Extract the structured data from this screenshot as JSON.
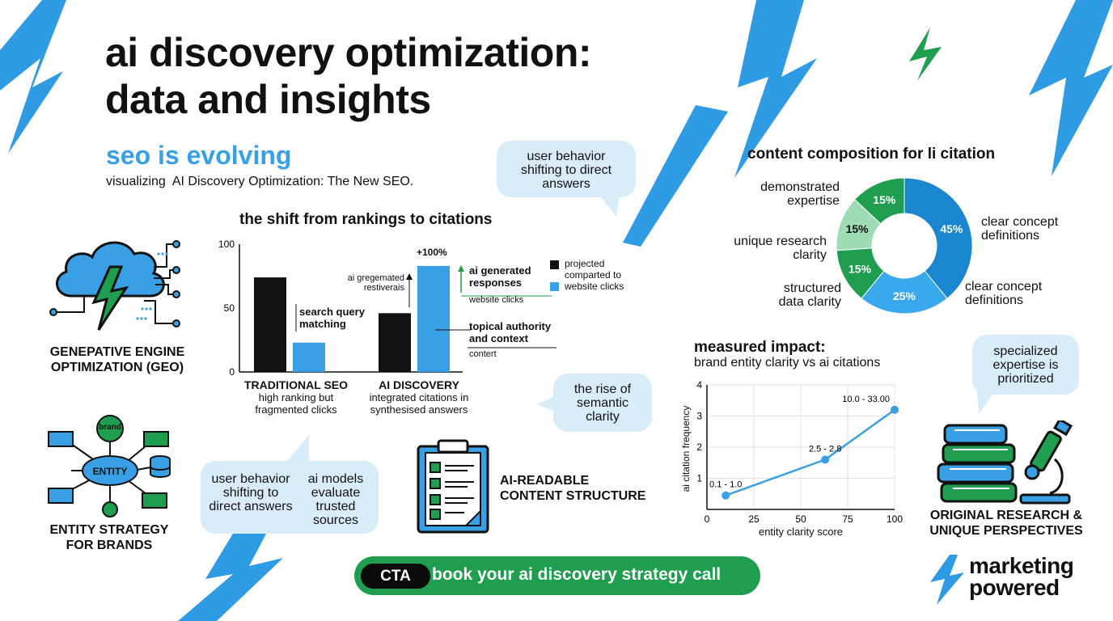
{
  "header": {
    "title_line1": "ai discovery optimization:",
    "title_line2": "data and insights",
    "subtitle": "seo is evolving",
    "tagline": "visualizing  AI Discovery Optimization: The New SEO."
  },
  "colors": {
    "blue": "#3aa0e6",
    "green": "#1e9e4e",
    "black": "#111111",
    "bubble": "#d9ecf9"
  },
  "bubbles": {
    "top": [
      "user behavior",
      "shifting to direct",
      "answers"
    ],
    "semantic": [
      "the rise of",
      "semantic",
      "clarity"
    ],
    "expertise": [
      "specialized",
      "expertise is",
      "prioritized"
    ],
    "bottom_left": [
      "user behavior",
      "shifting to",
      "direct answers"
    ],
    "bottom_right": [
      "ai models",
      "evaluate",
      "trusted",
      "sources"
    ]
  },
  "features": {
    "geo": {
      "icon": "cloud-lightning-icon",
      "label_line1": "GENEPATIVE ENGINE",
      "label_line2": "OPTIMIZATION (GEO)"
    },
    "entity": {
      "icon": "entity-network-icon",
      "label_line1": "ENTITY STRATEGY",
      "label_line2": "FOR BRANDS",
      "node_brand": "brand",
      "node_entity": "ENTITY"
    },
    "content": {
      "icon": "checklist-clipboard-icon",
      "label_line1": "AI-READABLE",
      "label_line2": "CONTENT STRUCTURE"
    },
    "research": {
      "icon": "books-microscope-icon",
      "label_line1": "ORIGINAL RESEARCH &",
      "label_line2": "UNIQUE PERSPECTIVES"
    }
  },
  "chart_data": [
    {
      "type": "bar",
      "title": "the shift from rankings to citations",
      "ylim": [
        0,
        100
      ],
      "yticks": [
        0,
        50,
        100
      ],
      "categories": [
        "TRADITIONAL SEO",
        "AI DISCOVERY"
      ],
      "category_captions": [
        [
          "high ranking but",
          "fragmented clicks"
        ],
        [
          "integrated citations in",
          "synthesised answers"
        ]
      ],
      "series": [
        {
          "name": "projected compared to",
          "color": "#111111",
          "values": [
            74,
            46
          ]
        },
        {
          "name": "website clicks",
          "color": "#3aa0e6",
          "values": [
            23,
            83
          ]
        }
      ],
      "legend": {
        "items": [
          [
            "projected",
            "comparted to"
          ],
          [
            "website clicks"
          ]
        ],
        "position": "right"
      },
      "annotations": {
        "growth": "+100%",
        "left_arrow_line1": "ai gregemated",
        "left_arrow_line2": "restiverais",
        "search_line1": "search query",
        "search_line2": "matching",
        "gen_line1": "ai generated",
        "gen_line2": "responses",
        "gen_sub": "website clicks",
        "topical_line1": "topical authority",
        "topical_line2": "and context",
        "topical_sub": "contert"
      }
    },
    {
      "type": "pie",
      "title": "content composition for li citation",
      "slices": [
        {
          "label": "clear concept definitions",
          "value": 45,
          "color": "#1a86cf"
        },
        {
          "label": "clear concept definitions",
          "value": 25,
          "color": "#3aa8ec"
        },
        {
          "label": "structured data clarity",
          "value": 15,
          "color": "#1e9e4e"
        },
        {
          "label": "unique research clarity",
          "value": 15,
          "color": "#9fdcb5"
        },
        {
          "label": "demonstrated expertise",
          "value": 15,
          "color": "#1e9e4e"
        }
      ],
      "slice_labels": [
        "45%",
        "25%",
        "15%",
        "15%",
        "15%"
      ],
      "outer_labels": [
        [
          "clear concept",
          "definitions"
        ],
        [
          "clear concept",
          "definitions"
        ],
        [
          "structured",
          "data clarity"
        ],
        [
          "unique research",
          "clarity"
        ],
        [
          "demonstrated",
          "expertise"
        ]
      ]
    },
    {
      "type": "line",
      "title": "measured impact:",
      "subtitle": "brand entity clarity vs ai citations",
      "xlabel": "entity clarity score",
      "ylabel": "ai citation frequency",
      "xlim": [
        0,
        100
      ],
      "ylim": [
        0,
        4
      ],
      "xticks": [
        0,
        25,
        50,
        75,
        100
      ],
      "yticks": [
        1,
        2,
        3,
        4
      ],
      "x": [
        10,
        63,
        100
      ],
      "y": [
        0.45,
        1.6,
        3.2
      ],
      "point_labels": [
        "0.1 - 1.0",
        "2.5 - 2.8",
        "10.0 - 33.00"
      ],
      "color": "#3aa0e6"
    }
  ],
  "cta": {
    "tag": "CTA",
    "text": "book your ai discovery strategy call"
  },
  "brand": {
    "logo_icon": "lightning-bolt-icon",
    "line1": "marketing",
    "line2": "powered"
  }
}
